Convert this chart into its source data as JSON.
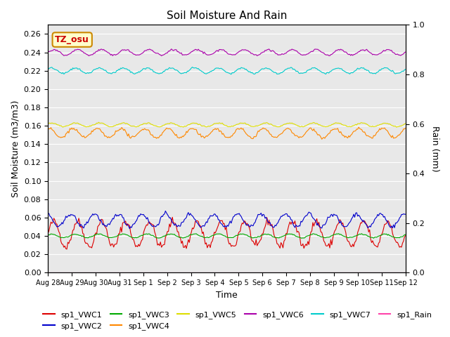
{
  "title": "Soil Moisture And Rain",
  "xlabel": "Time",
  "ylabel_left": "Soil Moisture (m3/m3)",
  "ylabel_right": "Rain (mm)",
  "annotation_text": "TZ_osu",
  "annotation_bg": "#ffffcc",
  "annotation_border": "#cc8800",
  "annotation_text_color": "#cc0000",
  "ylim_left": [
    0.0,
    0.27
  ],
  "ylim_right": [
    0.0,
    1.0
  ],
  "yticks_left": [
    0.0,
    0.02,
    0.04,
    0.06,
    0.08,
    0.1,
    0.12,
    0.14,
    0.16,
    0.18,
    0.2,
    0.22,
    0.24,
    0.26
  ],
  "yticks_right": [
    0.0,
    0.2,
    0.4,
    0.6,
    0.8,
    1.0
  ],
  "bg_color": "#e8e8e8",
  "n_points": 360,
  "series": {
    "sp1_VWC1": {
      "color": "#dd0000",
      "base": 0.042,
      "amp": 0.014,
      "period": 24,
      "phase": 0.0
    },
    "sp1_VWC2": {
      "color": "#0000cc",
      "base": 0.057,
      "amp": 0.007,
      "period": 24,
      "phase": 0.3
    },
    "sp1_VWC3": {
      "color": "#00aa00",
      "base": 0.04,
      "amp": 0.002,
      "period": 24,
      "phase": 0.1
    },
    "sp1_VWC4": {
      "color": "#ff8800",
      "base": 0.152,
      "amp": 0.005,
      "period": 24,
      "phase": 0.2
    },
    "sp1_VWC5": {
      "color": "#dddd00",
      "base": 0.161,
      "amp": 0.002,
      "period": 24,
      "phase": 0.1
    },
    "sp1_VWC6": {
      "color": "#aa00aa",
      "base": 0.24,
      "amp": 0.003,
      "period": 24,
      "phase": 0.0
    },
    "sp1_VWC7": {
      "color": "#00cccc",
      "base": 0.22,
      "amp": 0.003,
      "period": 24,
      "phase": 0.1
    },
    "sp1_Rain": {
      "color": "#ff44aa",
      "base": 0.0,
      "amp": 0.0,
      "period": 24,
      "phase": 0.0
    }
  },
  "x_tick_labels": [
    "Aug 28",
    "Aug 29",
    "Aug 30",
    "Aug 31",
    "Sep 1",
    "Sep 2",
    "Sep 3",
    "Sep 4",
    "Sep 5",
    "Sep 6",
    "Sep 7",
    "Sep 8",
    "Sep 9",
    "Sep 10",
    "Sep 11",
    "Sep 12"
  ],
  "legend_names": [
    "sp1_VWC1",
    "sp1_VWC2",
    "sp1_VWC3",
    "sp1_VWC4",
    "sp1_VWC5",
    "sp1_VWC6",
    "sp1_VWC7",
    "sp1_Rain"
  ],
  "legend_colors": {
    "sp1_VWC1": "#dd0000",
    "sp1_VWC2": "#0000cc",
    "sp1_VWC3": "#00aa00",
    "sp1_VWC4": "#ff8800",
    "sp1_VWC5": "#dddd00",
    "sp1_VWC6": "#aa00aa",
    "sp1_VWC7": "#00cccc",
    "sp1_Rain": "#ff44aa"
  }
}
